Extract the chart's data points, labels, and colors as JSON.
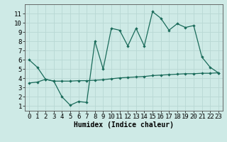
{
  "x": [
    0,
    1,
    2,
    3,
    4,
    5,
    6,
    7,
    8,
    9,
    10,
    11,
    12,
    13,
    14,
    15,
    16,
    17,
    18,
    19,
    20,
    21,
    22,
    23
  ],
  "y_curve": [
    6.0,
    5.2,
    3.9,
    3.7,
    2.0,
    1.1,
    1.5,
    1.4,
    8.0,
    5.0,
    9.4,
    9.2,
    7.5,
    9.4,
    7.5,
    11.2,
    10.5,
    9.2,
    9.9,
    9.5,
    9.7,
    6.3,
    5.2,
    4.6
  ],
  "y_line": [
    3.5,
    3.6,
    3.9,
    3.7,
    3.7,
    3.7,
    3.75,
    3.75,
    3.8,
    3.85,
    3.95,
    4.05,
    4.1,
    4.15,
    4.2,
    4.3,
    4.35,
    4.4,
    4.45,
    4.5,
    4.5,
    4.55,
    4.55,
    4.6
  ],
  "line_color": "#1a6b5a",
  "bg_color": "#ceeae6",
  "grid_color": "#b8d8d4",
  "xlabel": "Humidex (Indice chaleur)",
  "xlim": [
    -0.5,
    23.5
  ],
  "ylim": [
    0.5,
    12
  ],
  "yticks": [
    1,
    2,
    3,
    4,
    5,
    6,
    7,
    8,
    9,
    10,
    11
  ],
  "xticks": [
    0,
    1,
    2,
    3,
    4,
    5,
    6,
    7,
    8,
    9,
    10,
    11,
    12,
    13,
    14,
    15,
    16,
    17,
    18,
    19,
    20,
    21,
    22,
    23
  ],
  "xlabel_fontsize": 7,
  "tick_fontsize": 6.5
}
